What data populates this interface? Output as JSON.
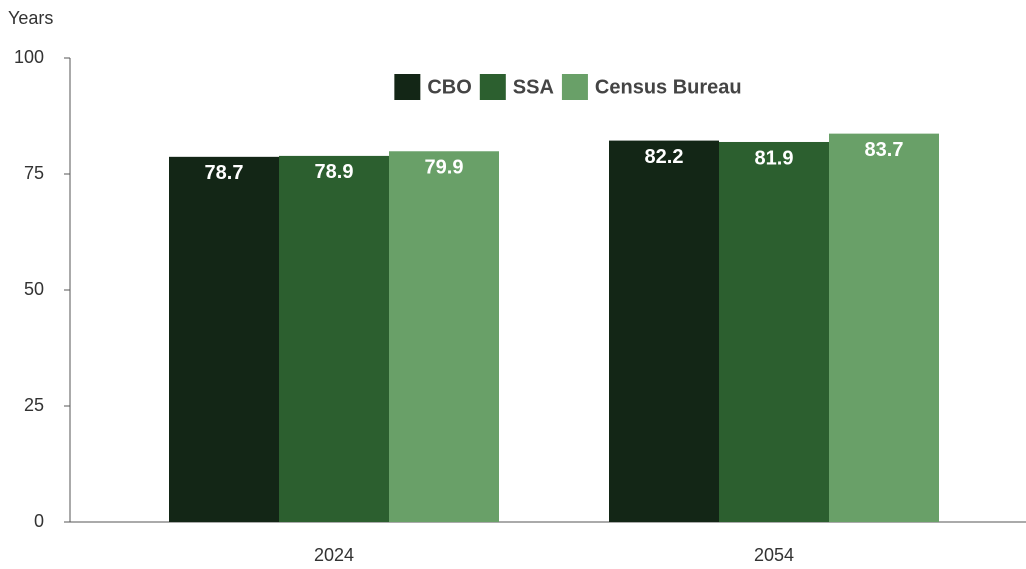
{
  "chart_data": {
    "type": "bar",
    "y_label": "Years",
    "categories": [
      "2024",
      "2054"
    ],
    "series": [
      {
        "name": "CBO",
        "color": "#132616",
        "values": [
          78.7,
          82.2
        ]
      },
      {
        "name": "SSA",
        "color": "#2c5f2f",
        "values": [
          78.9,
          81.9
        ]
      },
      {
        "name": "Census Bureau",
        "color": "#69a068",
        "values": [
          79.9,
          83.7
        ]
      }
    ],
    "ylim": [
      0,
      100
    ],
    "yticks": [
      0,
      25,
      50,
      75,
      100
    ],
    "legend": "top"
  }
}
